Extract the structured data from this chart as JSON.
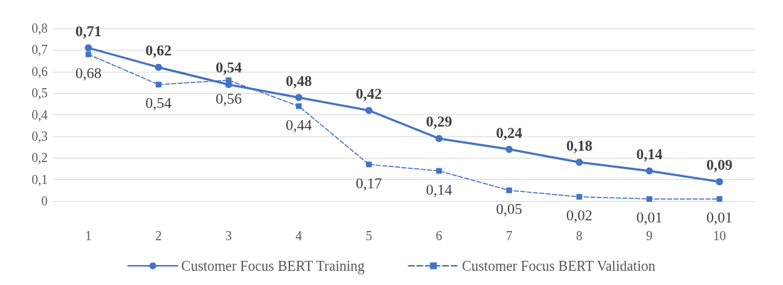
{
  "chart_data": {
    "type": "line",
    "categories": [
      "1",
      "2",
      "3",
      "4",
      "5",
      "6",
      "7",
      "8",
      "9",
      "10"
    ],
    "ylim": [
      0,
      0.8
    ],
    "yticks": [
      {
        "value": 0,
        "label": "0"
      },
      {
        "value": 0.1,
        "label": "0,1"
      },
      {
        "value": 0.2,
        "label": "0,2"
      },
      {
        "value": 0.3,
        "label": "0,3"
      },
      {
        "value": 0.4,
        "label": "0,4"
      },
      {
        "value": 0.5,
        "label": "0,5"
      },
      {
        "value": 0.6,
        "label": "0,6"
      },
      {
        "value": 0.7,
        "label": "0,7"
      },
      {
        "value": 0.8,
        "label": "0,8"
      }
    ],
    "grid": "y",
    "legend": "bottom",
    "series": [
      {
        "name": "Customer Focus BERT Training",
        "color": "#4472c4",
        "marker": "circle",
        "line_style": "solid",
        "values": [
          0.71,
          0.62,
          0.54,
          0.48,
          0.42,
          0.29,
          0.24,
          0.18,
          0.14,
          0.09
        ],
        "value_labels": [
          "0,71",
          "0,62",
          "0,54",
          "0,48",
          "0,42",
          "0,29",
          "0,24",
          "0,18",
          "0,14",
          "0,09"
        ]
      },
      {
        "name": "Customer Focus BERT Validation",
        "color": "#4472c4",
        "marker": "square",
        "line_style": "dashed",
        "values": [
          0.68,
          0.54,
          0.56,
          0.44,
          0.17,
          0.14,
          0.05,
          0.02,
          0.01,
          0.01
        ],
        "value_labels": [
          "0,68",
          "0,54",
          "0,56",
          "0,44",
          "0,17",
          "0,14",
          "0,05",
          "0,02",
          "0,01",
          "0,01"
        ]
      }
    ]
  }
}
